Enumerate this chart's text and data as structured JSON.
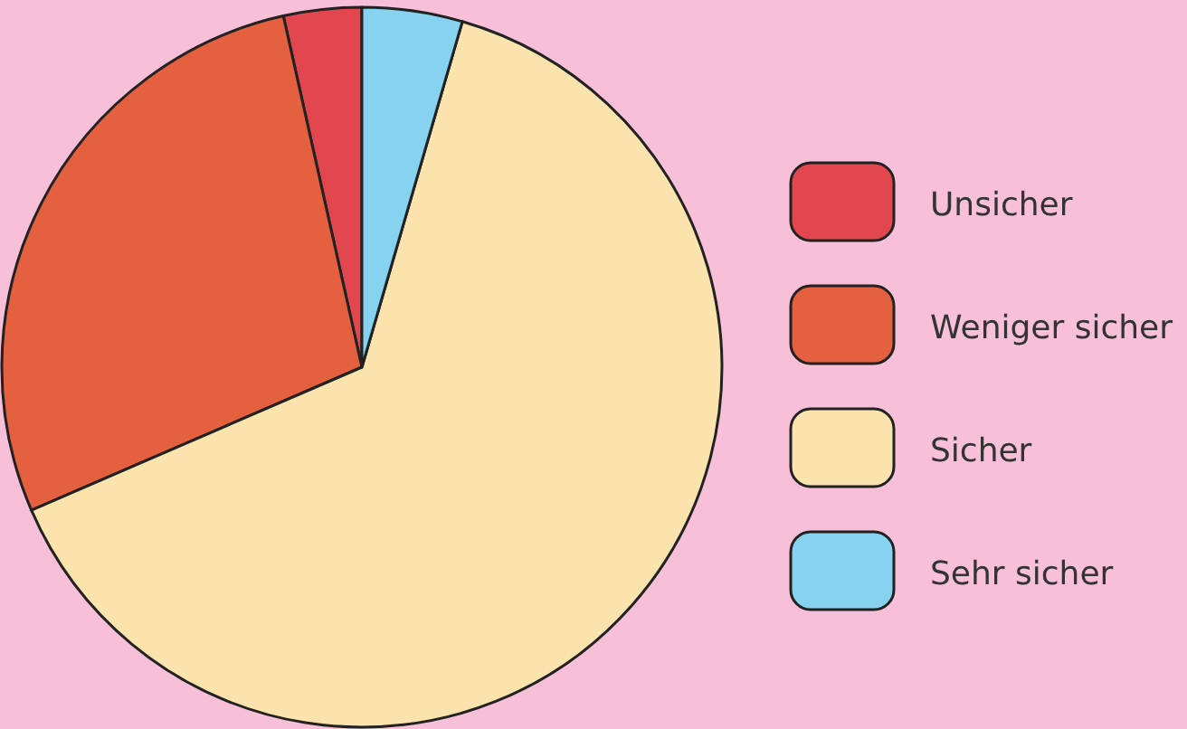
{
  "chart_data": {
    "type": "pie",
    "categories": [
      "Unsicher",
      "Weniger sicher",
      "Sicher",
      "Sehr sicher"
    ],
    "values": [
      3.5,
      28,
      64,
      4.5
    ],
    "colors": [
      "#e2474f",
      "#e5603f",
      "#fae3ad",
      "#86d2ef"
    ],
    "legend": "right"
  }
}
